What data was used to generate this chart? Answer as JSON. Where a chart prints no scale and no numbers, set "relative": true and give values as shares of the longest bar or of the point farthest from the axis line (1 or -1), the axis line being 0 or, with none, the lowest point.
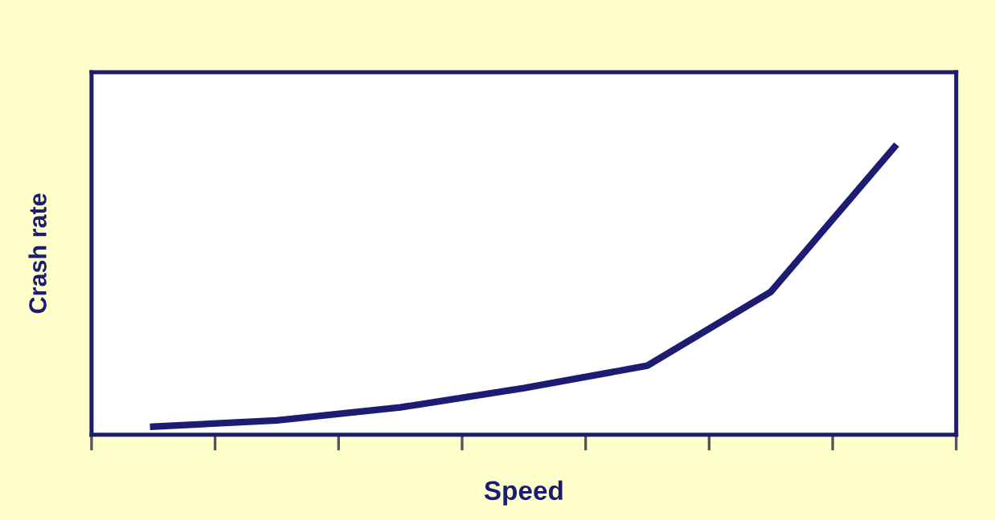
{
  "chart_data": {
    "type": "line",
    "relative": true,
    "xlabel": "Speed",
    "ylabel": "Crash rate",
    "categories": [
      null,
      null,
      null,
      null,
      null,
      null,
      null
    ],
    "series": [
      {
        "color": "#1c1c73",
        "values": [
          0.028,
          0.05,
          0.095,
          0.162,
          0.24,
          0.497,
          1.0
        ]
      }
    ],
    "grid": false,
    "legend": false,
    "tick_labels": false,
    "marker": "none",
    "line_style": "solid"
  }
}
